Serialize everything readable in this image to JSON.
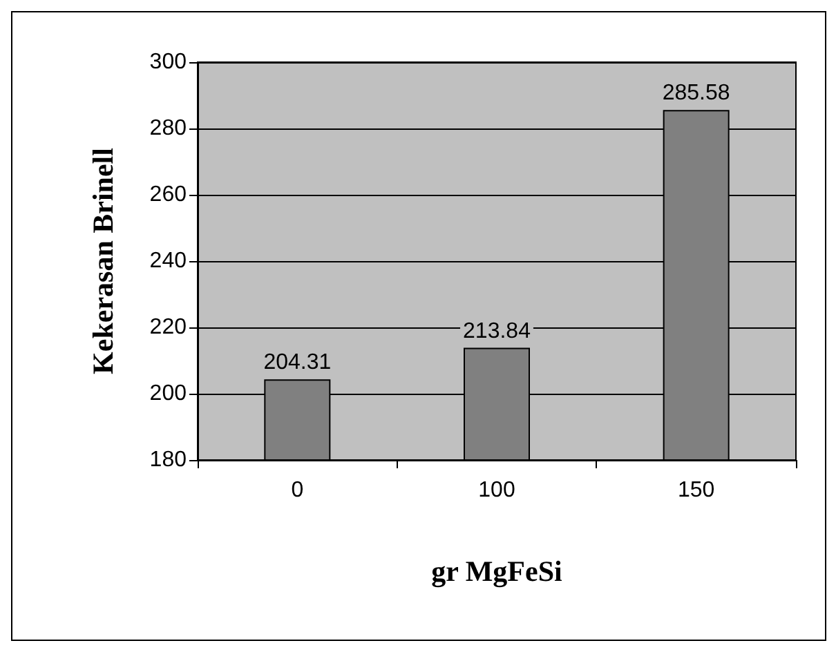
{
  "chart_data": {
    "type": "bar",
    "xlabel": "gr MgFeSi",
    "ylabel": "Kekerasan Brinell",
    "categories": [
      "0",
      "100",
      "150"
    ],
    "values": [
      204.31,
      213.84,
      285.58
    ],
    "color": "#808080",
    "ylim": [
      180,
      300
    ],
    "yticks": [
      180,
      200,
      220,
      240,
      260,
      280,
      300
    ],
    "grid": "y",
    "data_labels": true
  }
}
